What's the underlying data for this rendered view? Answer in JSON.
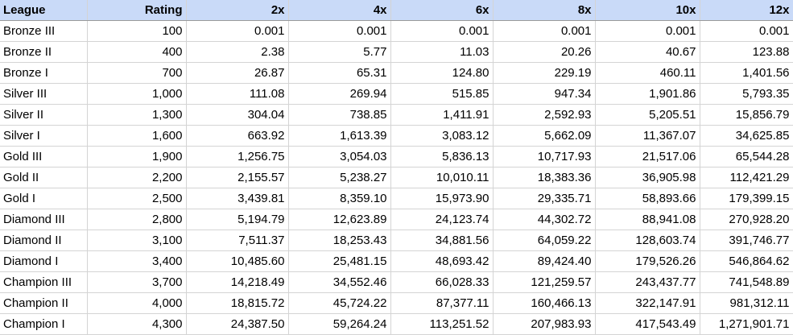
{
  "sheet": {
    "columns": [
      "League",
      "Rating",
      "2x",
      "4x",
      "6x",
      "8x",
      "10x",
      "12x"
    ],
    "rows": [
      [
        "Bronze III",
        "100",
        "0.001",
        "0.001",
        "0.001",
        "0.001",
        "0.001",
        "0.001"
      ],
      [
        "Bronze II",
        "400",
        "2.38",
        "5.77",
        "11.03",
        "20.26",
        "40.67",
        "123.88"
      ],
      [
        "Bronze I",
        "700",
        "26.87",
        "65.31",
        "124.80",
        "229.19",
        "460.11",
        "1,401.56"
      ],
      [
        "Silver III",
        "1,000",
        "111.08",
        "269.94",
        "515.85",
        "947.34",
        "1,901.86",
        "5,793.35"
      ],
      [
        "Silver II",
        "1,300",
        "304.04",
        "738.85",
        "1,411.91",
        "2,592.93",
        "5,205.51",
        "15,856.79"
      ],
      [
        "Silver I",
        "1,600",
        "663.92",
        "1,613.39",
        "3,083.12",
        "5,662.09",
        "11,367.07",
        "34,625.85"
      ],
      [
        "Gold III",
        "1,900",
        "1,256.75",
        "3,054.03",
        "5,836.13",
        "10,717.93",
        "21,517.06",
        "65,544.28"
      ],
      [
        "Gold II",
        "2,200",
        "2,155.57",
        "5,238.27",
        "10,010.11",
        "18,383.36",
        "36,905.98",
        "112,421.29"
      ],
      [
        "Gold I",
        "2,500",
        "3,439.81",
        "8,359.10",
        "15,973.90",
        "29,335.71",
        "58,893.66",
        "179,399.15"
      ],
      [
        "Diamond III",
        "2,800",
        "5,194.79",
        "12,623.89",
        "24,123.74",
        "44,302.72",
        "88,941.08",
        "270,928.20"
      ],
      [
        "Diamond II",
        "3,100",
        "7,511.37",
        "18,253.43",
        "34,881.56",
        "64,059.22",
        "128,603.74",
        "391,746.77"
      ],
      [
        "Diamond I",
        "3,400",
        "10,485.60",
        "25,481.15",
        "48,693.42",
        "89,424.40",
        "179,526.26",
        "546,864.62"
      ],
      [
        "Champion III",
        "3,700",
        "14,218.49",
        "34,552.46",
        "66,028.33",
        "121,259.57",
        "243,437.77",
        "741,548.89"
      ],
      [
        "Champion II",
        "4,000",
        "18,815.72",
        "45,724.22",
        "87,377.11",
        "160,466.13",
        "322,147.91",
        "981,312.11"
      ],
      [
        "Champion I",
        "4,300",
        "24,387.50",
        "59,264.24",
        "113,251.52",
        "207,983.93",
        "417,543.49",
        "1,271,901.71"
      ]
    ]
  },
  "colors": {
    "header_bg": "#c9daf8",
    "grid_line": "#d4d4d4",
    "header_rule": "#9a9a9a"
  }
}
